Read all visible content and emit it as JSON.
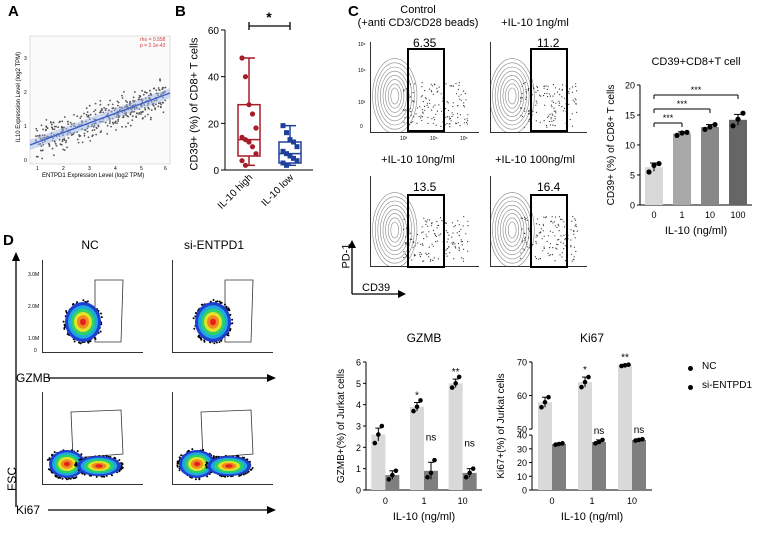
{
  "panels": {
    "A": {
      "label": "A",
      "x_axis_title": "ENTPD1 Expression Level (log2 TPM)",
      "y_axis_title": "IL10 Expression Level (log2 TPM)",
      "stats": [
        "rho = 0.558",
        "p = 2.1e-43"
      ],
      "x_ticks": [
        "1",
        "2",
        "3",
        "4",
        "5",
        "6"
      ],
      "y_ticks": [
        "0",
        "1",
        "2",
        "3"
      ]
    },
    "B": {
      "label": "B",
      "y_axis_title": "CD39+ (%) of CD8+ T cells",
      "significance": "*"
    },
    "C": {
      "label": "C",
      "facs_titles": [
        "Control\n(+anti CD3/CD28 beads)",
        "+IL-10 1ng/ml",
        "+IL-10 10ng/ml",
        "+IL-10 100ng/ml"
      ],
      "facs_values": [
        "6.35",
        "11.2",
        "13.5",
        "16.4"
      ],
      "y_axis_marker": "PD-1",
      "x_axis_marker": "CD39",
      "facs_tick_labels": [
        "10⁵",
        "10⁴",
        "10³",
        "0",
        "10³",
        "10⁴",
        "10⁵"
      ]
    },
    "D": {
      "label": "D",
      "column_titles": [
        "NC",
        "si-ENTPD1"
      ],
      "row_markers": [
        "GZMB",
        "Ki67"
      ],
      "y_axis_marker": "FSC",
      "facs_y_ticks": [
        "3.0M",
        "2.0M",
        "1.0M",
        "0"
      ]
    },
    "legend": {
      "items": [
        "NC",
        "si-ENTPD1"
      ]
    }
  },
  "chart_data": [
    {
      "id": "B-boxplot",
      "type": "box",
      "title": "",
      "ylabel": "CD39+ (%) of CD8+ T cells",
      "categories": [
        "IL-10 high",
        "IL-10 low"
      ],
      "ylim": [
        0,
        60
      ],
      "yticks": [
        0,
        20,
        40,
        60
      ],
      "colors": [
        "#a61c28",
        "#1e3f9a"
      ],
      "boxes": [
        {
          "min": 2,
          "q1": 6,
          "median": 13,
          "q3": 28,
          "max": 48
        },
        {
          "min": 2,
          "q1": 3,
          "median": 7,
          "q3": 12,
          "max": 19
        }
      ],
      "points": [
        [
          48,
          40,
          28,
          24,
          18,
          14,
          13,
          12,
          10,
          7,
          4,
          2
        ],
        [
          19,
          16,
          13,
          12,
          10,
          8,
          7,
          6,
          5,
          4,
          3,
          2
        ]
      ],
      "significance": "*"
    },
    {
      "id": "C-bar",
      "type": "bar",
      "title": "CD39+CD8+T cell",
      "xlabel": "IL-10 (ng/ml)",
      "ylabel": "CD39+ (%) of CD8+ T cells",
      "categories": [
        "0",
        "1",
        "10",
        "100"
      ],
      "values": [
        6.3,
        11.9,
        13.0,
        14.2
      ],
      "errors": [
        0.7,
        0.3,
        0.4,
        0.9
      ],
      "points": [
        [
          5.5,
          6.6,
          6.9
        ],
        [
          11.6,
          12.0,
          12.1
        ],
        [
          12.6,
          13.0,
          13.4
        ],
        [
          13.2,
          14.3,
          15.3
        ]
      ],
      "colors": [
        "#d8d8d8",
        "#a8a8a8",
        "#888888",
        "#666666"
      ],
      "ylim": [
        0,
        20
      ],
      "yticks": [
        0,
        5,
        10,
        15,
        20
      ],
      "significance": [
        {
          "from": 0,
          "to": 1,
          "label": "***"
        },
        {
          "from": 0,
          "to": 2,
          "label": "***"
        },
        {
          "from": 0,
          "to": 3,
          "label": "***"
        }
      ]
    },
    {
      "id": "D-GZMB",
      "type": "bar",
      "title": "GZMB",
      "xlabel": "IL-10 (ng/ml)",
      "ylabel": "GZMB+(%) of Jurkat cells",
      "categories": [
        "0",
        "1",
        "10"
      ],
      "series": [
        {
          "name": "NC",
          "values": [
            2.6,
            3.9,
            5.0
          ],
          "errors": [
            0.3,
            0.2,
            0.2
          ],
          "color": "#d9d9d9",
          "points": [
            [
              2.2,
              2.6,
              3.0
            ],
            [
              3.7,
              3.9,
              4.2
            ],
            [
              4.8,
              5.0,
              5.3
            ]
          ]
        },
        {
          "name": "si-ENTPD1",
          "values": [
            0.7,
            0.9,
            0.8
          ],
          "errors": [
            0.2,
            0.4,
            0.2
          ],
          "color": "#7f7f7f",
          "points": [
            [
              0.5,
              0.7,
              0.9
            ],
            [
              0.6,
              0.8,
              1.4
            ],
            [
              0.6,
              0.8,
              1.0
            ]
          ]
        }
      ],
      "ylim": [
        0,
        6
      ],
      "yticks": [
        0,
        1,
        2,
        3,
        4,
        5,
        6
      ],
      "annotations_nc": [
        "",
        "*",
        "**"
      ],
      "annotations_si": [
        "",
        "ns",
        "ns"
      ]
    },
    {
      "id": "D-Ki67",
      "type": "bar",
      "title": "Ki67",
      "xlabel": "IL-10 (ng/ml)",
      "ylabel": "Ki67+(%) of Jurkat cells",
      "categories": [
        "0",
        "1",
        "10"
      ],
      "series": [
        {
          "name": "NC",
          "values": [
            58,
            64,
            69
          ],
          "errors": [
            1.5,
            1.5,
            0.3
          ],
          "color": "#d9d9d9",
          "points": [
            [
              56.5,
              58,
              59.5
            ],
            [
              62.5,
              64,
              65.5
            ],
            [
              68.8,
              69,
              69.2
            ]
          ]
        },
        {
          "name": "si-ENTPD1",
          "values": [
            33.5,
            35,
            36.5
          ],
          "errors": [
            0.8,
            1.5,
            0.8
          ],
          "color": "#7f7f7f",
          "points": [
            [
              33,
              33.5,
              34
            ],
            [
              34,
              35,
              36.5
            ],
            [
              36,
              36.5,
              37
            ]
          ]
        }
      ],
      "ylim": [
        0,
        70
      ],
      "axis_break": [
        40,
        50
      ],
      "yticks": [
        0,
        10,
        20,
        30,
        40,
        50,
        60,
        70
      ],
      "annotations_nc": [
        "",
        "*",
        "**"
      ],
      "annotations_si": [
        "",
        "ns",
        "ns"
      ]
    }
  ]
}
